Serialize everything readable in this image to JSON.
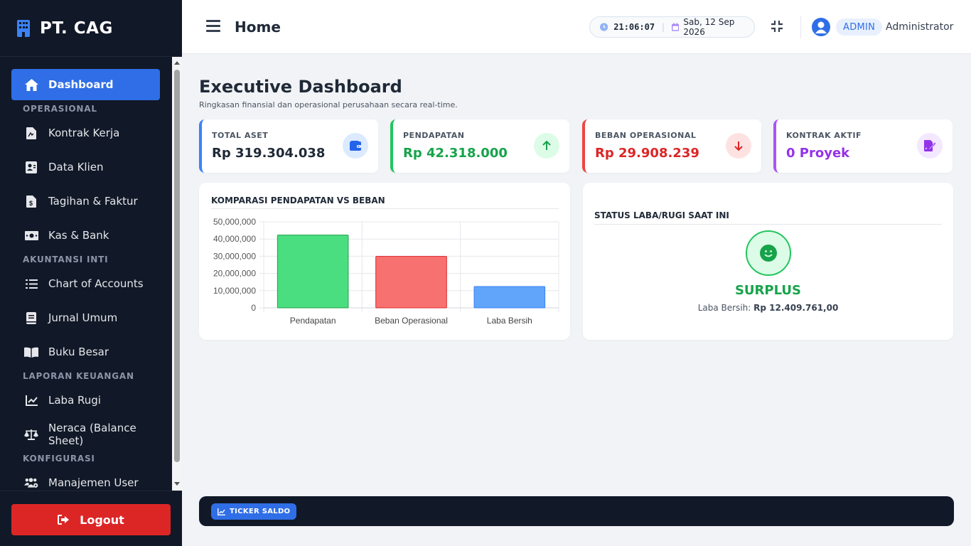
{
  "brand": {
    "name": "PT. CAG"
  },
  "sidebar": {
    "items": [
      {
        "label": "Dashboard",
        "icon": "home-icon",
        "active": true
      },
      {
        "section": "OPERASIONAL"
      },
      {
        "label": "Kontrak Kerja",
        "icon": "contract-icon"
      },
      {
        "label": "Data Klien",
        "icon": "client-card-icon"
      },
      {
        "label": "Tagihan & Faktur",
        "icon": "invoice-icon"
      },
      {
        "label": "Kas & Bank",
        "icon": "money-icon"
      },
      {
        "section": "AKUNTANSI INTI"
      },
      {
        "label": "Chart of Accounts",
        "icon": "list-icon"
      },
      {
        "label": "Jurnal Umum",
        "icon": "journal-icon"
      },
      {
        "label": "Buku Besar",
        "icon": "book-icon"
      },
      {
        "section": "LAPORAN KEUANGAN"
      },
      {
        "label": "Laba Rugi",
        "icon": "chart-line-icon"
      },
      {
        "label": "Neraca (Balance Sheet)",
        "icon": "scale-icon"
      },
      {
        "section": "KONFIGURASI"
      },
      {
        "label": "Manajemen User",
        "icon": "users-icon"
      }
    ],
    "logout_label": "Logout"
  },
  "header": {
    "title": "Home",
    "time": "21:06:07",
    "date": "Sab, 12 Sep 2026",
    "role": "ADMIN",
    "username": "Administrator"
  },
  "page": {
    "title": "Executive Dashboard",
    "subtitle": "Ringkasan finansial dan operasional perusahaan secara real-time."
  },
  "stats": [
    {
      "label": "TOTAL ASET",
      "value": "Rp 319.304.038",
      "color": "#3b82f6",
      "icon": "wallet-icon"
    },
    {
      "label": "PENDAPATAN",
      "value": "Rp 42.318.000",
      "color": "#22c55e",
      "icon": "arrow-up-icon"
    },
    {
      "label": "BEBAN OPERASIONAL",
      "value": "Rp 29.908.239",
      "color": "#ef4444",
      "icon": "arrow-down-icon"
    },
    {
      "label": "KONTRAK AKTIF",
      "value": "0 Proyek",
      "color": "#a855f7",
      "icon": "signature-icon"
    }
  ],
  "comparison": {
    "title": "KOMPARASI PENDAPATAN VS BEBAN"
  },
  "chart_data": {
    "type": "bar",
    "categories": [
      "Pendapatan",
      "Beban Operasional",
      "Laba Bersih"
    ],
    "values": [
      42318000,
      29908239,
      12409761
    ],
    "colors": [
      "#4ade80",
      "#f87171",
      "#60a5fa"
    ],
    "ylim": [
      0,
      50000000
    ],
    "yticks": [
      "0",
      "10,000,000",
      "20,000,000",
      "30,000,000",
      "40,000,000",
      "50,000,000"
    ],
    "grid": true
  },
  "status": {
    "title": "STATUS LABA/RUGI SAAT INI",
    "state": "SURPLUS",
    "label": "Laba Bersih:",
    "amount": "Rp 12.409.761,00"
  },
  "ticker": {
    "label": "TICKER SALDO"
  }
}
